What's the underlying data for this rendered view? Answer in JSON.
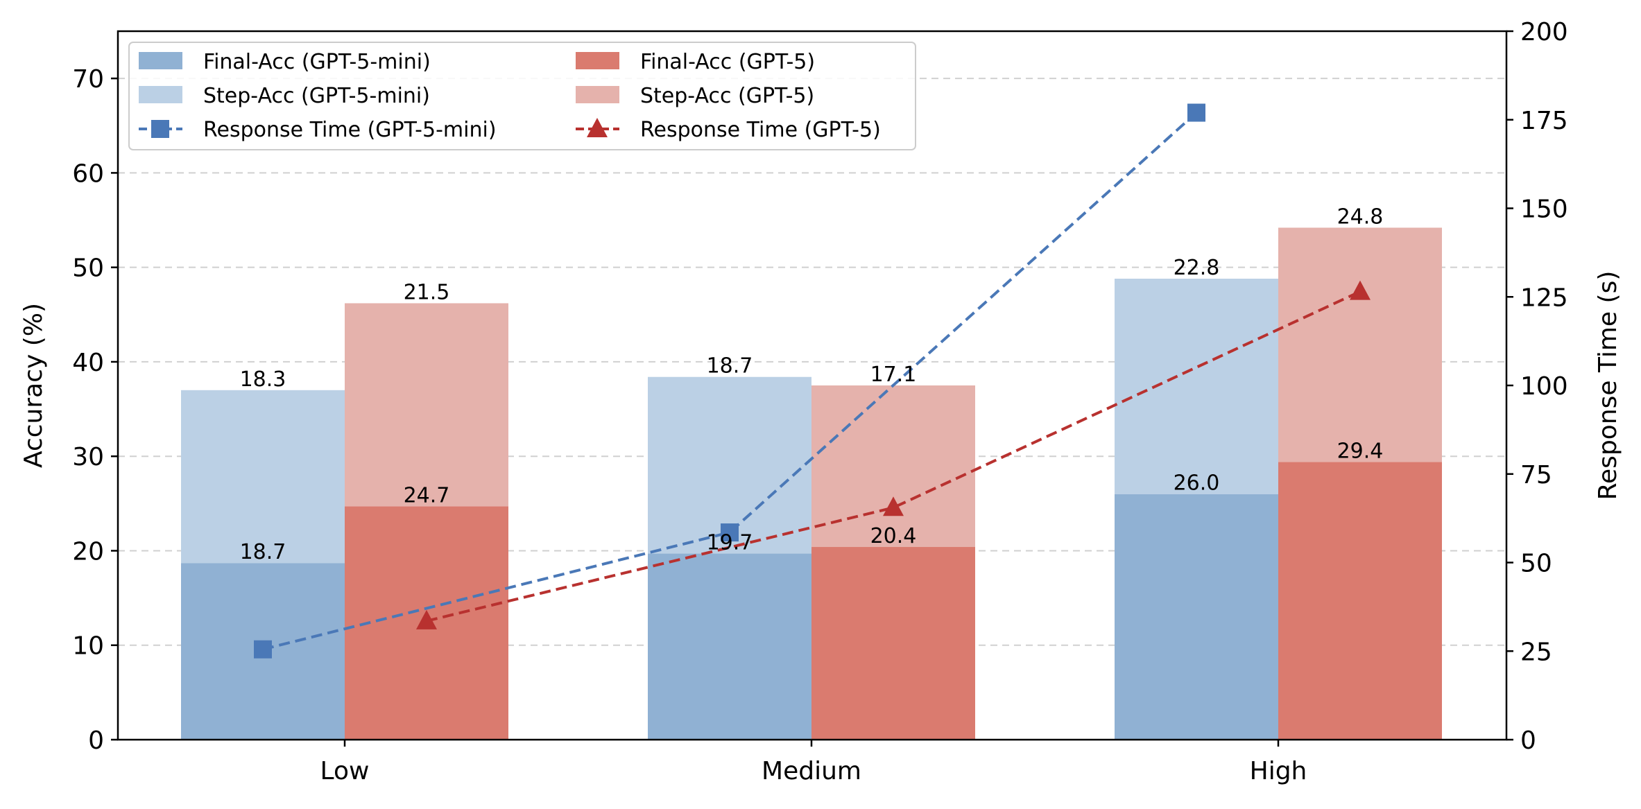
{
  "chart_data": {
    "type": "bar",
    "categories": [
      "Low",
      "Medium",
      "High"
    ],
    "ylabel": "Accuracy (%)",
    "ylabel_right": "Response Time (s)",
    "ylim": [
      0,
      75
    ],
    "ylim_right": [
      0,
      200
    ],
    "yticks": [
      0,
      10,
      20,
      30,
      40,
      50,
      60,
      70
    ],
    "yticks_right": [
      0,
      25,
      50,
      75,
      100,
      125,
      150,
      175,
      200
    ],
    "grid": "horizontal dashed",
    "legend_position": "upper-left",
    "series": [
      {
        "name": "Final-Acc (GPT-5-mini)",
        "kind": "bar",
        "values": [
          18.7,
          19.7,
          26.0
        ],
        "labels": [
          "18.7",
          "19.7",
          "26.0"
        ],
        "color": "#90b1d3"
      },
      {
        "name": "Step-Acc (GPT-5-mini)",
        "kind": "bar",
        "values": [
          18.3,
          18.7,
          22.8
        ],
        "labels": [
          "18.3",
          "18.7",
          "22.8"
        ],
        "color": "#bbd0e5"
      },
      {
        "name": "Final-Acc (GPT-5)",
        "kind": "bar",
        "values": [
          24.7,
          20.4,
          29.4
        ],
        "labels": [
          "24.7",
          "20.4",
          "29.4"
        ],
        "color": "#da7b6f"
      },
      {
        "name": "Step-Acc (GPT-5)",
        "kind": "bar",
        "values": [
          21.5,
          17.1,
          24.8
        ],
        "labels": [
          "21.5",
          "17.1",
          "24.8"
        ],
        "color": "#e5b2ac"
      },
      {
        "name": "Response Time (GPT-5-mini)",
        "kind": "line",
        "axis": "right",
        "values": [
          25.5,
          58.5,
          177
        ],
        "marker": "square",
        "color": "#4a78b7"
      },
      {
        "name": "Response Time (GPT-5)",
        "kind": "line",
        "axis": "right",
        "values": [
          33.5,
          65.5,
          126.5
        ],
        "marker": "triangle",
        "color": "#b8312f"
      }
    ]
  }
}
